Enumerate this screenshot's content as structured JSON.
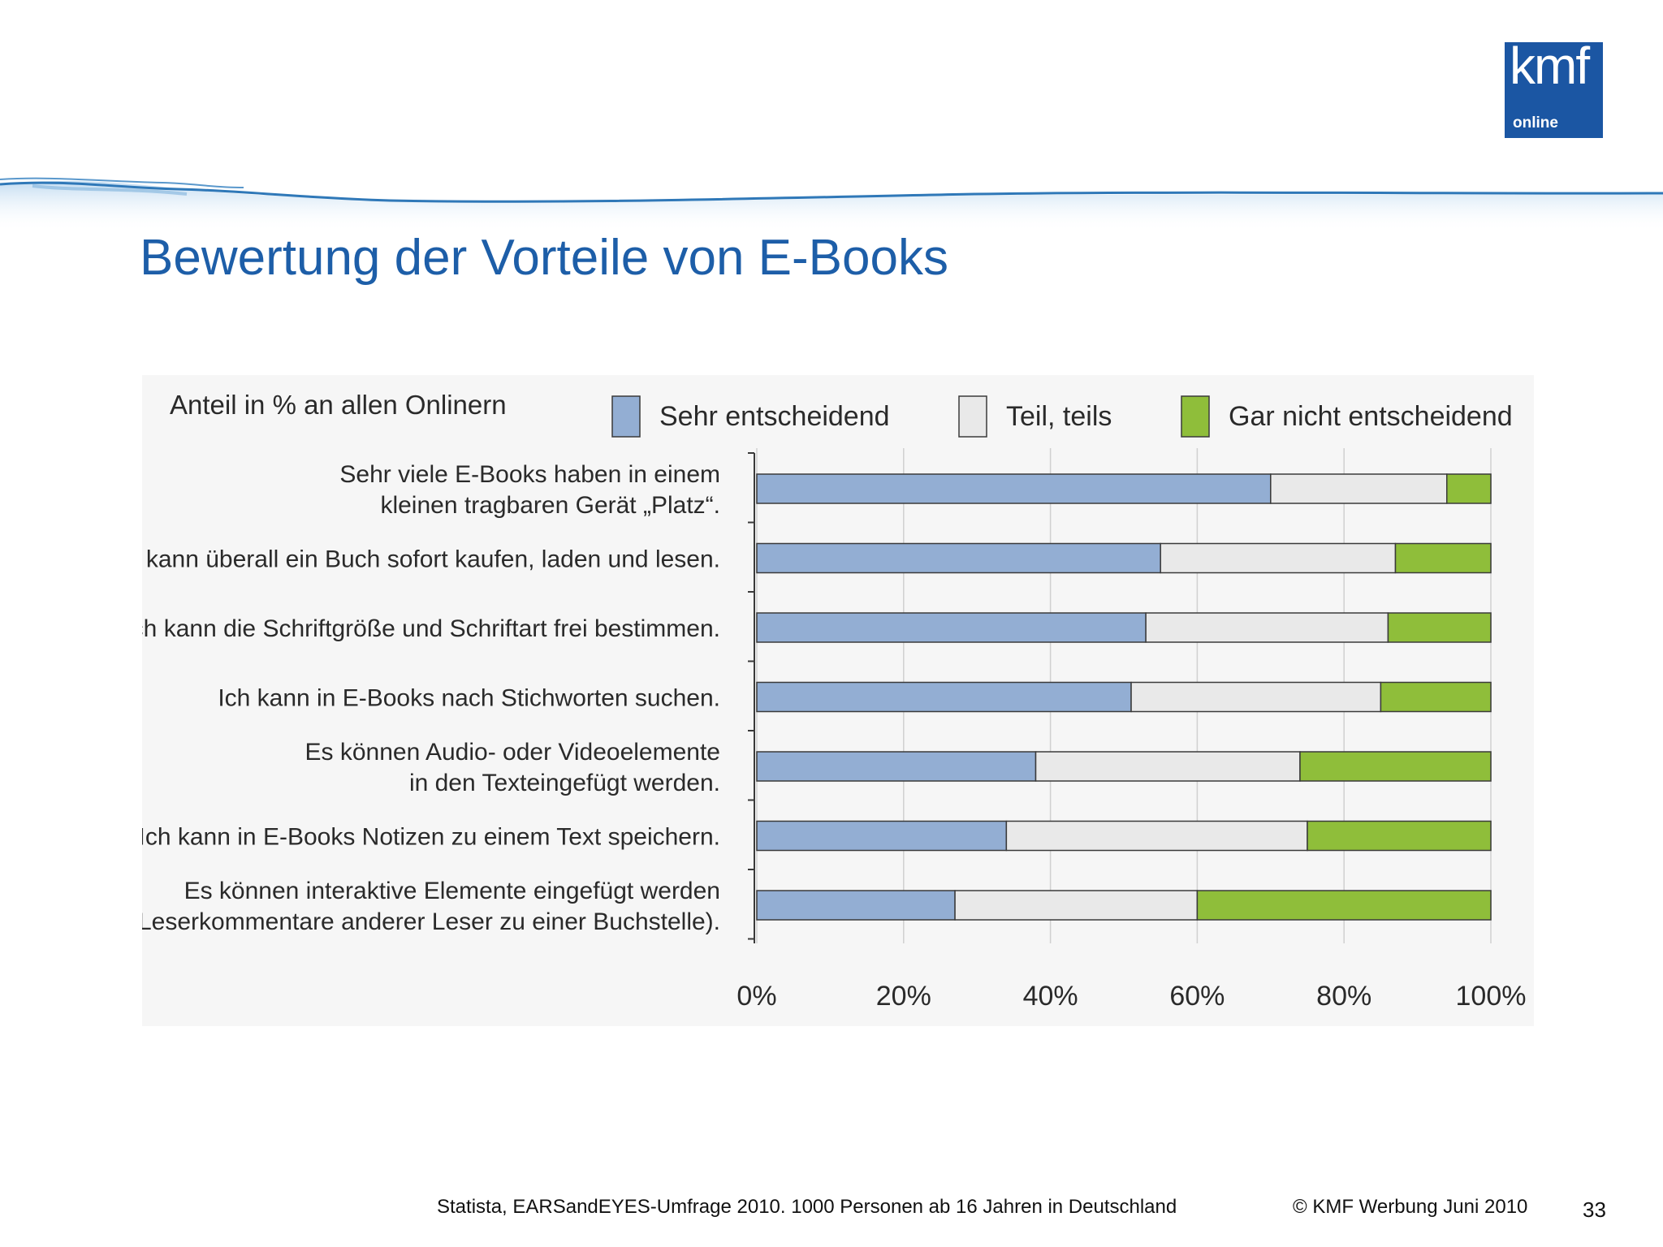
{
  "slide": {
    "title": "Bewertung der Vorteile von E-Books",
    "source": "Statista, EARSandEYES-Umfrage 2010. 1000 Personen ab 16 Jahren in Deutschland",
    "copyright": "© KMF Werbung Juni 2010",
    "page_number": "33",
    "logo": {
      "text": "kmf",
      "subtext": "online",
      "color": "#1b56a3"
    },
    "title_color": "#1d5ea8"
  },
  "chart_data": {
    "type": "bar",
    "orientation": "horizontal",
    "stacked": true,
    "subtitle": "Anteil in % an allen Onlinern",
    "categories": [
      [
        "Sehr viele E-Books haben in einem",
        "kleinen tragbaren Gerät „Platz“."
      ],
      [
        "Ich kann überall ein Buch sofort kaufen, laden und lesen."
      ],
      [
        "Ich kann die Schriftgröße und Schriftart frei bestimmen."
      ],
      [
        "Ich kann in E-Books nach Stichworten suchen."
      ],
      [
        "Es können Audio- oder Videoelemente",
        "in den  Texteingefügt werden."
      ],
      [
        "Ich kann in E-Books Notizen zu einem Text speichern."
      ],
      [
        "Es können interaktive Elemente eingefügt werden",
        "(z. B. Leserkommentare anderer Leser zu einer Buchstelle)."
      ]
    ],
    "series": [
      {
        "name": "Sehr entscheidend",
        "color": "#93aed3",
        "values": [
          70,
          55,
          53,
          51,
          38,
          34,
          27
        ]
      },
      {
        "name": "Teil, teils",
        "color": "#e9e9e9",
        "values": [
          24,
          32,
          33,
          34,
          36,
          41,
          33
        ]
      },
      {
        "name": "Gar nicht entscheidend",
        "color": "#8fbe3a",
        "values": [
          6,
          13,
          14,
          15,
          26,
          25,
          40
        ]
      }
    ],
    "xlim": [
      0,
      100
    ],
    "x_ticks": [
      "0%",
      "20%",
      "40%",
      "60%",
      "80%",
      "100%"
    ],
    "grid": true,
    "legend_position": "top"
  }
}
